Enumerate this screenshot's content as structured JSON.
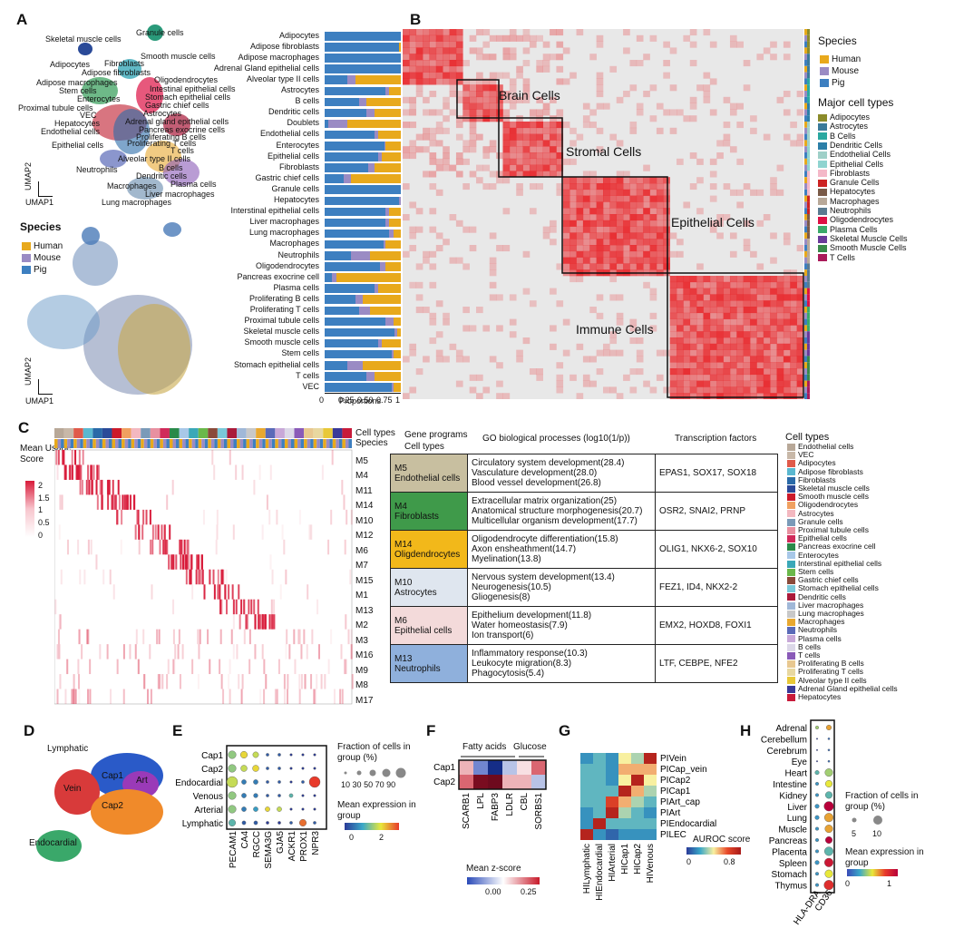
{
  "panels": {
    "a": "A",
    "b": "B",
    "c": "C",
    "d": "D",
    "e": "E",
    "f": "F",
    "g": "G",
    "h": "H"
  },
  "colors": {
    "human": "#e8a91c",
    "mouse": "#9a8bc4",
    "pig": "#3d7fc0"
  },
  "umap": {
    "x": "UMAP1",
    "y": "UMAP2"
  },
  "a_labels": [
    "Granule cells",
    "Skeletal muscle cells",
    "Smooth muscle cells",
    "Adipocytes",
    "Fibroblasts",
    "Adipose fibroblasts",
    "Oligodendrocytes",
    "Adipose macrophages",
    "Intestinal epithelial cells",
    "Stem cells",
    "Enterocytes",
    "Stomach epithelial cells",
    "Proximal tubule cells",
    "Gastric chief cells",
    "VEC",
    "Astrocytes",
    "Hepatocytes",
    "Adrenal gland epithelial cells",
    "Endothelial cells",
    "Pancreas exocrine cells",
    "Proliferating B cells",
    "Epithelial cells",
    "Proliferating T cells",
    "T cells",
    "Alveolar type II cells",
    "B cells",
    "Neutrophils",
    "Dendritic cells",
    "Plasma cells",
    "Macrophages",
    "Liver macrophages",
    "Lung macrophages"
  ],
  "species": {
    "title": "Species",
    "items": [
      "Human",
      "Mouse",
      "Pig"
    ]
  },
  "proportions": {
    "xlabel": "Proportions",
    "ticks": [
      "0",
      "0.25",
      "0.50",
      "0.75",
      "1"
    ],
    "rows": [
      {
        "n": "Adipocytes",
        "h": 0.0,
        "m": 0.0,
        "p": 1.0
      },
      {
        "n": "Adipose fibroblasts",
        "h": 0.02,
        "m": 0.0,
        "p": 0.98
      },
      {
        "n": "Adipose macrophages",
        "h": 0.0,
        "m": 0.0,
        "p": 1.0
      },
      {
        "n": "Adrenal Gland epithelial cells",
        "h": 0.0,
        "m": 0.0,
        "p": 1.0
      },
      {
        "n": "Alveolar type II cells",
        "h": 0.6,
        "m": 0.1,
        "p": 0.3
      },
      {
        "n": "Astrocytes",
        "h": 0.15,
        "m": 0.05,
        "p": 0.8
      },
      {
        "n": "B cells",
        "h": 0.45,
        "m": 0.1,
        "p": 0.45
      },
      {
        "n": "Dendritic cells",
        "h": 0.35,
        "m": 0.1,
        "p": 0.55
      },
      {
        "n": "Doublets",
        "h": 0.7,
        "m": 0.25,
        "p": 0.05
      },
      {
        "n": "Endothelial cells",
        "h": 0.3,
        "m": 0.05,
        "p": 0.65
      },
      {
        "n": "Enterocytes",
        "h": 0.2,
        "m": 0.02,
        "p": 0.78
      },
      {
        "n": "Epithelial cells",
        "h": 0.25,
        "m": 0.05,
        "p": 0.7
      },
      {
        "n": "Fibroblasts",
        "h": 0.35,
        "m": 0.08,
        "p": 0.57
      },
      {
        "n": "Gastric chief cells",
        "h": 0.65,
        "m": 0.1,
        "p": 0.25
      },
      {
        "n": "Granule cells",
        "h": 0.0,
        "m": 0.0,
        "p": 1.0
      },
      {
        "n": "Hepatocytes",
        "h": 0.0,
        "m": 0.02,
        "p": 0.98
      },
      {
        "n": "Interstinal epithelial cells",
        "h": 0.15,
        "m": 0.05,
        "p": 0.8
      },
      {
        "n": "Liver macrophages",
        "h": 0.15,
        "m": 0.05,
        "p": 0.8
      },
      {
        "n": "Lung macrophages",
        "h": 0.1,
        "m": 0.05,
        "p": 0.85
      },
      {
        "n": "Macrophages",
        "h": 0.2,
        "m": 0.03,
        "p": 0.77
      },
      {
        "n": "Neutrophils",
        "h": 0.4,
        "m": 0.25,
        "p": 0.35
      },
      {
        "n": "Oligodendrocytes",
        "h": 0.2,
        "m": 0.07,
        "p": 0.73
      },
      {
        "n": "Pancreas exocrine cell",
        "h": 0.85,
        "m": 0.05,
        "p": 0.1
      },
      {
        "n": "Plasma cells",
        "h": 0.3,
        "m": 0.05,
        "p": 0.65
      },
      {
        "n": "Proliferating B cells",
        "h": 0.5,
        "m": 0.1,
        "p": 0.4
      },
      {
        "n": "Proliferating T cells",
        "h": 0.4,
        "m": 0.15,
        "p": 0.45
      },
      {
        "n": "Proximal tubule cells",
        "h": 0.1,
        "m": 0.1,
        "p": 0.8
      },
      {
        "n": "Skeletal muscle cells",
        "h": 0.05,
        "m": 0.03,
        "p": 0.92
      },
      {
        "n": "Smooth muscle cells",
        "h": 0.25,
        "m": 0.05,
        "p": 0.7
      },
      {
        "n": "Stem cells",
        "h": 0.1,
        "m": 0.02,
        "p": 0.88
      },
      {
        "n": "Stomach epithelial cells",
        "h": 0.5,
        "m": 0.2,
        "p": 0.3
      },
      {
        "n": "T cells",
        "h": 0.35,
        "m": 0.1,
        "p": 0.55
      },
      {
        "n": "VEC",
        "h": 0.1,
        "m": 0.02,
        "p": 0.88
      }
    ]
  },
  "b": {
    "boxes": [
      "Brain Cells",
      "Stromal Cells",
      "Epithelial Cells",
      "Immune Cells"
    ],
    "species_title": "Species",
    "species": [
      "Human",
      "Mouse",
      "Pig"
    ],
    "major_title": "Major cell types",
    "major": [
      {
        "n": "Adipocytes",
        "c": "#8b8b2a"
      },
      {
        "n": "Astrocytes",
        "c": "#3a7a9a"
      },
      {
        "n": "B Cells",
        "c": "#2aa8a0"
      },
      {
        "n": "Dendritic Cells",
        "c": "#2c7fa8"
      },
      {
        "n": "Endothelial Cells",
        "c": "#9fd0c8"
      },
      {
        "n": "Epithelial Cells",
        "c": "#8fd4d0"
      },
      {
        "n": "Fibroblasts",
        "c": "#f4b8c8"
      },
      {
        "n": "Granule Cells",
        "c": "#cc2222"
      },
      {
        "n": "Hepatocytes",
        "c": "#7a5a48"
      },
      {
        "n": "Macrophages",
        "c": "#b8a898"
      },
      {
        "n": "Neutrophils",
        "c": "#5a7a90"
      },
      {
        "n": "Oligodendrocytes",
        "c": "#dd1144"
      },
      {
        "n": "Plasma Cells",
        "c": "#3aaa6a"
      },
      {
        "n": "Skeletal Muscle Cells",
        "c": "#6a3a9a"
      },
      {
        "n": "Smooth Muscle Cells",
        "c": "#3a8a4a"
      },
      {
        "n": "T Cells",
        "c": "#aa1a5a"
      }
    ]
  },
  "c": {
    "legend_title": "Mean Usage Score",
    "scale": [
      "2",
      "1.5",
      "1",
      "0.5",
      "0"
    ],
    "track_labels": [
      "Cell types",
      "Species"
    ],
    "modules": [
      "M5",
      "M4",
      "M11",
      "M14",
      "M10",
      "M12",
      "M6",
      "M7",
      "M15",
      "M1",
      "M13",
      "M2",
      "M3",
      "M16",
      "M9",
      "M8",
      "M17"
    ],
    "table_headers": {
      "col1": "Gene programs",
      "col1b": "Cell types",
      "col2": "GO biological processes (log10(1/p))",
      "col3": "Transcription factors"
    },
    "programs": [
      {
        "m": "M5",
        "ct": "Endothelial cells",
        "color": "#c8bfa0",
        "go": [
          "Circulatory system development(28.4)",
          "Vasculature development(28.0)",
          "Blood vessel development(26.8)"
        ],
        "tf": "EPAS1, SOX17, SOX18"
      },
      {
        "m": "M4",
        "ct": "Fibroblasts",
        "color": "#3f9a4a",
        "go": [
          "Extracellular matrix organization(25)",
          "Anatomical structure morphogenesis(20.7)",
          "Multicellular organism development(17.7)"
        ],
        "tf": "OSR2, SNAI2, PRNP"
      },
      {
        "m": "M14",
        "ct": "Oligdendrocytes",
        "color": "#f2b81a",
        "go": [
          "Oligodendrocyte differentiation(15.8)",
          "Axon ensheathment(14.7)",
          "Myelination(13.8)"
        ],
        "tf": "OLIG1, NKX6-2, SOX10"
      },
      {
        "m": "M10",
        "ct": "Astrocytes",
        "color": "#dfe6ef",
        "go": [
          "Nervous system development(13.4)",
          "Neurogenesis(10.5)",
          "Gliogenesis(8)"
        ],
        "tf": "FEZ1, ID4, NKX2-2"
      },
      {
        "m": "M6",
        "ct": "Epithelial cells",
        "color": "#f3dada",
        "go": [
          "Epithelium development(11.8)",
          "Water homeostasis(7.9)",
          "Ion transport(6)"
        ],
        "tf": "EMX2, HOXD8, FOXI1"
      },
      {
        "m": "M13",
        "ct": "Neutrophils",
        "color": "#8fb0dc",
        "go": [
          "Inflammatory response(10.3)",
          "Leukocyte migration(8.3)",
          "Phagocytosis(5.4)"
        ],
        "tf": "LTF, CEBPE, NFE2"
      }
    ],
    "celltypes_title": "Cell types",
    "celltypes": [
      {
        "n": "Endothelial cells",
        "c": "#b8a898"
      },
      {
        "n": "VEC",
        "c": "#c8b8a8"
      },
      {
        "n": "Adipocytes",
        "c": "#e05a4a"
      },
      {
        "n": "Adipose fibroblasts",
        "c": "#5ab8d0"
      },
      {
        "n": "Fibroblasts",
        "c": "#2a6aa8"
      },
      {
        "n": "Skeletal muscle cells",
        "c": "#2a4a98"
      },
      {
        "n": "Smooth muscle cells",
        "c": "#cc1a2a"
      },
      {
        "n": "Oligodendrocytes",
        "c": "#f0a060"
      },
      {
        "n": "Astrocytes",
        "c": "#f3b8c0"
      },
      {
        "n": "Granule cells",
        "c": "#7a9ab8"
      },
      {
        "n": "Proximal tubule cells",
        "c": "#e890a0"
      },
      {
        "n": "Epithelial cells",
        "c": "#d02a5a"
      },
      {
        "n": "Pancreas exocrine cell",
        "c": "#2a8a4a"
      },
      {
        "n": "Enterocytes",
        "c": "#a8c8e8"
      },
      {
        "n": "Interstinal epithelial cells",
        "c": "#3aa8b8"
      },
      {
        "n": "Stem cells",
        "c": "#6ab84a"
      },
      {
        "n": "Gastric chief cells",
        "c": "#8a4a3a"
      },
      {
        "n": "Stomach epithelial cells",
        "c": "#7ac8d8"
      },
      {
        "n": "Dendritic cells",
        "c": "#aa1a3a"
      },
      {
        "n": "Liver macrophages",
        "c": "#a0b8d8"
      },
      {
        "n": "Lung macrophages",
        "c": "#c8c8c8"
      },
      {
        "n": "Macrophages",
        "c": "#e8a830"
      },
      {
        "n": "Neutrophils",
        "c": "#5a6ab8"
      },
      {
        "n": "Plasma cells",
        "c": "#c8a8d8"
      },
      {
        "n": "B cells",
        "c": "#dcd8e8"
      },
      {
        "n": "T cells",
        "c": "#8a5ab8"
      },
      {
        "n": "Proliferating B cells",
        "c": "#e8c890"
      },
      {
        "n": "Proliferating T cells",
        "c": "#e8d8a0"
      },
      {
        "n": "Alveolar type II cells",
        "c": "#e8c838"
      },
      {
        "n": "Adrenal Gland epithelial cells",
        "c": "#3a3a98"
      },
      {
        "n": "Hepatocytes",
        "c": "#c81a3a"
      }
    ]
  },
  "d": {
    "labels": [
      "Lymphatic",
      "Vein",
      "Cap1",
      "Art",
      "Cap2",
      "Endocardial"
    ]
  },
  "e": {
    "rows": [
      "Cap1",
      "Cap2",
      "Endocardial",
      "Venous",
      "Arterial",
      "Lymphatic"
    ],
    "cols": [
      "PECAM1",
      "CA4",
      "RGCC",
      "SEMA3G",
      "GJA5",
      "ACKR1",
      "PROX1",
      "NPR3"
    ],
    "dots": [
      [
        0.6,
        0.5,
        0.4,
        0.1,
        0.1,
        0.05,
        0.05,
        0.05
      ],
      [
        0.6,
        0.45,
        0.45,
        0.1,
        0.1,
        0.05,
        0.05,
        0.05
      ],
      [
        0.9,
        0.3,
        0.3,
        0.1,
        0.1,
        0.05,
        0.1,
        0.9
      ],
      [
        0.6,
        0.3,
        0.25,
        0.1,
        0.1,
        0.2,
        0.05,
        0.05
      ],
      [
        0.6,
        0.3,
        0.3,
        0.3,
        0.3,
        0.05,
        0.05,
        0.05
      ],
      [
        0.5,
        0.2,
        0.2,
        0.1,
        0.1,
        0.1,
        0.5,
        0.1
      ]
    ],
    "expr": [
      [
        0.5,
        0.7,
        0.6,
        0.1,
        0.1,
        0,
        0,
        0
      ],
      [
        0.5,
        0.6,
        0.7,
        0.1,
        0.1,
        0,
        0,
        0
      ],
      [
        0.6,
        0.2,
        0.2,
        0.1,
        0.1,
        0,
        0.1,
        1.0
      ],
      [
        0.5,
        0.2,
        0.2,
        0.1,
        0.1,
        0.4,
        0,
        0
      ],
      [
        0.5,
        0.2,
        0.3,
        0.7,
        0.6,
        0,
        0,
        0
      ],
      [
        0.4,
        0.1,
        0.1,
        0,
        0,
        0.1,
        0.9,
        0.1
      ]
    ],
    "frac_title": "Fraction of cells in group (%)",
    "frac_ticks": [
      "10",
      "30",
      "50",
      "70",
      "90"
    ],
    "expr_title": "Mean expression in group",
    "expr_ticks": [
      "0",
      "2"
    ]
  },
  "f": {
    "groups": [
      "Fatty acids",
      "Glucose"
    ],
    "rows": [
      "Cap1",
      "Cap2"
    ],
    "cols": [
      "SCARB1",
      "LPL",
      "FABP3",
      "LDLR",
      "CBL",
      "SORBS1"
    ],
    "z": [
      [
        0.05,
        -0.1,
        -0.25,
        -0.05,
        0.02,
        0.1
      ],
      [
        0.1,
        0.28,
        0.3,
        0.05,
        0.05,
        -0.05
      ]
    ],
    "legend_title": "Mean z-score",
    "ticks": [
      "0.00",
      "0.25"
    ]
  },
  "g": {
    "rows": [
      "PIVein",
      "PICap_vein",
      "PICap2",
      "PICap1",
      "PIArt_cap",
      "PIArt",
      "PIEndocardial",
      "PILEC"
    ],
    "cols": [
      "HILymphatic",
      "HIEndocardial",
      "HIArterial",
      "HICap1",
      "HICap2",
      "HIVenous"
    ],
    "v": [
      [
        0.2,
        0.3,
        0.2,
        0.5,
        0.4,
        0.95
      ],
      [
        0.3,
        0.3,
        0.2,
        0.6,
        0.6,
        0.6
      ],
      [
        0.3,
        0.3,
        0.2,
        0.5,
        0.95,
        0.5
      ],
      [
        0.3,
        0.3,
        0.3,
        0.95,
        0.6,
        0.4
      ],
      [
        0.3,
        0.3,
        0.8,
        0.6,
        0.4,
        0.3
      ],
      [
        0.2,
        0.3,
        0.95,
        0.4,
        0.3,
        0.2
      ],
      [
        0.2,
        0.95,
        0.3,
        0.3,
        0.3,
        0.3
      ],
      [
        0.95,
        0.2,
        0.1,
        0.2,
        0.2,
        0.2
      ]
    ],
    "legend_title": "AUROC score",
    "ticks": [
      "0",
      "0.8"
    ]
  },
  "h": {
    "rows": [
      "Adrenal",
      "Cerebellum",
      "Cerebrum",
      "Eye",
      "Heart",
      "Intestine",
      "Kidney",
      "Liver",
      "Lung",
      "Muscle",
      "Pancreas",
      "Placenta",
      "Spleen",
      "Stomach",
      "Thymus"
    ],
    "cols": [
      "HLA-DRA",
      "CD36"
    ],
    "dots": [
      [
        0.2,
        0.4
      ],
      [
        0,
        0.05
      ],
      [
        0,
        0.05
      ],
      [
        0,
        0.05
      ],
      [
        0.3,
        0.7
      ],
      [
        0.2,
        0.6
      ],
      [
        0.2,
        0.6
      ],
      [
        0.3,
        0.9
      ],
      [
        0.3,
        0.8
      ],
      [
        0.2,
        0.7
      ],
      [
        0.2,
        0.6
      ],
      [
        0.2,
        0.8
      ],
      [
        0.3,
        0.8
      ],
      [
        0.2,
        0.7
      ],
      [
        0.2,
        0.9
      ]
    ],
    "expr": [
      [
        0.4,
        0.6
      ],
      [
        0,
        0.1
      ],
      [
        0,
        0.1
      ],
      [
        0,
        0.1
      ],
      [
        0.3,
        0.4
      ],
      [
        0.2,
        0.5
      ],
      [
        0.2,
        0.3
      ],
      [
        0.2,
        1.0
      ],
      [
        0.2,
        0.6
      ],
      [
        0.2,
        0.6
      ],
      [
        0.2,
        1.0
      ],
      [
        0.2,
        0.3
      ],
      [
        0.2,
        0.9
      ],
      [
        0.2,
        0.5
      ],
      [
        0.2,
        0.8
      ]
    ],
    "frac_title": "Fraction of cells in group (%)",
    "frac_ticks": [
      "5",
      "10"
    ],
    "expr_title": "Mean expression in group",
    "expr_ticks": [
      "0",
      "1"
    ]
  }
}
